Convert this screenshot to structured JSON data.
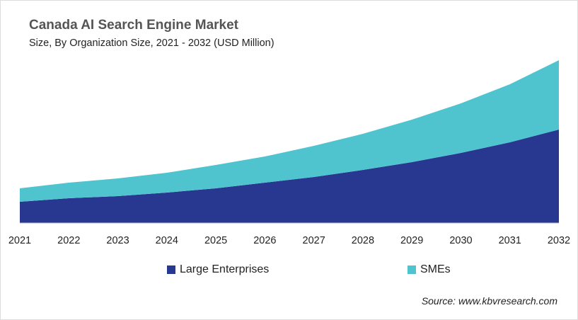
{
  "chart_data": {
    "type": "area",
    "stacked": true,
    "title": "Canada AI Search Engine Market",
    "subtitle": "Size, By Organization Size, 2021 - 2032 (USD Million)",
    "categories": [
      "2021",
      "2022",
      "2023",
      "2024",
      "2025",
      "2026",
      "2027",
      "2028",
      "2029",
      "2030",
      "2031",
      "2032"
    ],
    "series": [
      {
        "name": "Large Enterprises",
        "color": "#283891",
        "values": [
          30,
          35,
          38,
          43,
          49,
          57,
          65,
          75,
          86,
          99,
          114,
          132
        ]
      },
      {
        "name": "SMEs",
        "color": "#4fc4cf",
        "values": [
          19,
          22,
          25,
          28,
          33,
          37,
          44,
          51,
          60,
          70,
          82,
          98
        ]
      }
    ],
    "ylim": [
      0,
      240
    ],
    "y_axis_shown": false,
    "grid": false,
    "legend_position": "bottom",
    "source": "Source: www.kbvresearch.com"
  }
}
